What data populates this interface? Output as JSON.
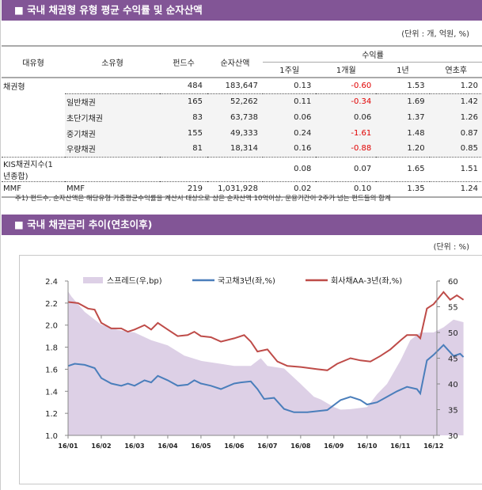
{
  "section1": {
    "title": "■ 국내 채권형 유형 평균 수익률 및 순자산액",
    "unit": "(단위 : 개, 억원, %)",
    "headers": {
      "major": "대유형",
      "minor": "소유형",
      "funds": "펀드수",
      "assets": "순자산액",
      "returns": "수익률",
      "w1": "1주일",
      "m1": "1개월",
      "y1": "1년",
      "ytd": "연초후"
    },
    "rows": [
      {
        "major": "채권형",
        "minor": "",
        "funds": "484",
        "assets": "183,647",
        "w1": "0.13",
        "m1": "-0.60",
        "y1": "1.53",
        "ytd": "1.20"
      },
      {
        "major": "",
        "minor": "일반채권",
        "funds": "165",
        "assets": "52,262",
        "w1": "0.11",
        "m1": "-0.34",
        "y1": "1.69",
        "ytd": "1.42"
      },
      {
        "major": "",
        "minor": "초단기채권",
        "funds": "83",
        "assets": "63,738",
        "w1": "0.06",
        "m1": "0.06",
        "y1": "1.37",
        "ytd": "1.26"
      },
      {
        "major": "",
        "minor": "중기채권",
        "funds": "155",
        "assets": "49,333",
        "w1": "0.24",
        "m1": "-1.61",
        "y1": "1.48",
        "ytd": "0.87"
      },
      {
        "major": "",
        "minor": "우량채권",
        "funds": "81",
        "assets": "18,314",
        "w1": "0.16",
        "m1": "-0.88",
        "y1": "1.20",
        "ytd": "0.85"
      },
      {
        "major": "KIS채권지수(1년종합)",
        "minor": "",
        "funds": "",
        "assets": "",
        "w1": "0.08",
        "m1": "0.07",
        "y1": "1.65",
        "ytd": "1.51"
      },
      {
        "major": "MMF",
        "minor": "MMF",
        "funds": "219",
        "assets": "1,031,928",
        "w1": "0.02",
        "m1": "0.10",
        "y1": "1.35",
        "ytd": "1.24"
      }
    ],
    "note": "주1) 펀드수, 순자산액은 해당유형 가중평균수익률을 계산시 대상으로 삼은 순자산액 10억이상, 운용기간이 2주가 넘는 펀드들의 합계",
    "negative_color": "#e00000"
  },
  "section2": {
    "title": "■ 국내 채권금리 추이(연초이후)",
    "unit": "(단위 : %)"
  },
  "chart_data": {
    "type": "line",
    "x_ticks": [
      "16/01",
      "16/02",
      "16/03",
      "16/04",
      "16/05",
      "16/06",
      "16/07",
      "16/08",
      "16/09",
      "16/10",
      "16/11",
      "16/12"
    ],
    "ylim": [
      1.0,
      2.4
    ],
    "y_ticks": [
      "1.0",
      "1.2",
      "1.4",
      "1.6",
      "1.8",
      "2.0",
      "2.2",
      "2.4"
    ],
    "y2lim": [
      30,
      60
    ],
    "y2_ticks": [
      "30",
      "35",
      "40",
      "45",
      "50",
      "55",
      "60"
    ],
    "legend": "top",
    "grid": false,
    "series": [
      {
        "name": "스프레드(우,bp)",
        "type": "area",
        "axis": "right",
        "color": "#ddd0e6",
        "points": [
          [
            0,
            58
          ],
          [
            0.1,
            57
          ],
          [
            0.5,
            54
          ],
          [
            1.0,
            51.5
          ],
          [
            1.5,
            50.5
          ],
          [
            2.0,
            50
          ],
          [
            2.5,
            48.5
          ],
          [
            3.0,
            47.5
          ],
          [
            3.5,
            45.5
          ],
          [
            4.0,
            44.5
          ],
          [
            4.5,
            44
          ],
          [
            5.0,
            43.5
          ],
          [
            5.5,
            43.5
          ],
          [
            5.8,
            45
          ],
          [
            6.0,
            43.5
          ],
          [
            6.5,
            43
          ],
          [
            7.0,
            40
          ],
          [
            7.4,
            37.5
          ],
          [
            7.6,
            37
          ],
          [
            8.0,
            35.5
          ],
          [
            8.2,
            35
          ],
          [
            8.5,
            35.1
          ],
          [
            9.0,
            35.5
          ],
          [
            9.3,
            38
          ],
          [
            9.6,
            40
          ],
          [
            10.0,
            44.5
          ],
          [
            10.3,
            48.5
          ],
          [
            10.6,
            50
          ],
          [
            11.0,
            50
          ],
          [
            11.3,
            51
          ],
          [
            11.6,
            52.5
          ],
          [
            11.9,
            52
          ]
        ]
      },
      {
        "name": "국고채3년(좌,%)",
        "type": "line",
        "axis": "left",
        "color": "#4a7ebb",
        "points": [
          [
            0,
            1.63
          ],
          [
            0.2,
            1.65
          ],
          [
            0.5,
            1.64
          ],
          [
            0.8,
            1.61
          ],
          [
            1.0,
            1.52
          ],
          [
            1.3,
            1.47
          ],
          [
            1.6,
            1.45
          ],
          [
            1.8,
            1.47
          ],
          [
            2.0,
            1.45
          ],
          [
            2.3,
            1.5
          ],
          [
            2.5,
            1.48
          ],
          [
            2.7,
            1.54
          ],
          [
            3.0,
            1.5
          ],
          [
            3.3,
            1.45
          ],
          [
            3.6,
            1.46
          ],
          [
            3.8,
            1.5
          ],
          [
            4.0,
            1.47
          ],
          [
            4.3,
            1.45
          ],
          [
            4.6,
            1.42
          ],
          [
            5.0,
            1.47
          ],
          [
            5.2,
            1.48
          ],
          [
            5.5,
            1.49
          ],
          [
            5.7,
            1.42
          ],
          [
            5.9,
            1.33
          ],
          [
            6.2,
            1.34
          ],
          [
            6.5,
            1.24
          ],
          [
            6.8,
            1.21
          ],
          [
            7.2,
            1.21
          ],
          [
            7.5,
            1.22
          ],
          [
            7.8,
            1.23
          ],
          [
            8.2,
            1.32
          ],
          [
            8.5,
            1.35
          ],
          [
            8.8,
            1.32
          ],
          [
            9.0,
            1.28
          ],
          [
            9.3,
            1.3
          ],
          [
            9.6,
            1.35
          ],
          [
            9.9,
            1.4
          ],
          [
            10.2,
            1.44
          ],
          [
            10.5,
            1.42
          ],
          [
            10.6,
            1.38
          ],
          [
            10.8,
            1.68
          ],
          [
            11.0,
            1.73
          ],
          [
            11.3,
            1.82
          ],
          [
            11.6,
            1.72
          ],
          [
            11.8,
            1.74
          ],
          [
            11.9,
            1.71
          ]
        ]
      },
      {
        "name": "회사채AA-3년(좌,%)",
        "type": "line",
        "axis": "left",
        "color": "#be4b48",
        "points": [
          [
            0,
            2.21
          ],
          [
            0.3,
            2.2
          ],
          [
            0.6,
            2.15
          ],
          [
            0.8,
            2.14
          ],
          [
            1.0,
            2.02
          ],
          [
            1.3,
            1.97
          ],
          [
            1.6,
            1.97
          ],
          [
            1.8,
            1.94
          ],
          [
            2.0,
            1.96
          ],
          [
            2.3,
            2.0
          ],
          [
            2.5,
            1.96
          ],
          [
            2.7,
            2.02
          ],
          [
            3.0,
            1.96
          ],
          [
            3.3,
            1.9
          ],
          [
            3.6,
            1.91
          ],
          [
            3.8,
            1.94
          ],
          [
            4.0,
            1.9
          ],
          [
            4.3,
            1.89
          ],
          [
            4.6,
            1.85
          ],
          [
            5.0,
            1.88
          ],
          [
            5.3,
            1.91
          ],
          [
            5.5,
            1.85
          ],
          [
            5.7,
            1.76
          ],
          [
            6.0,
            1.78
          ],
          [
            6.3,
            1.67
          ],
          [
            6.6,
            1.63
          ],
          [
            7.0,
            1.62
          ],
          [
            7.5,
            1.6
          ],
          [
            7.8,
            1.59
          ],
          [
            8.1,
            1.65
          ],
          [
            8.5,
            1.7
          ],
          [
            8.8,
            1.68
          ],
          [
            9.1,
            1.67
          ],
          [
            9.4,
            1.72
          ],
          [
            9.7,
            1.78
          ],
          [
            10.0,
            1.86
          ],
          [
            10.2,
            1.91
          ],
          [
            10.5,
            1.91
          ],
          [
            10.6,
            1.88
          ],
          [
            10.8,
            2.15
          ],
          [
            11.0,
            2.19
          ],
          [
            11.3,
            2.3
          ],
          [
            11.5,
            2.23
          ],
          [
            11.7,
            2.27
          ],
          [
            11.9,
            2.23
          ]
        ]
      }
    ]
  }
}
